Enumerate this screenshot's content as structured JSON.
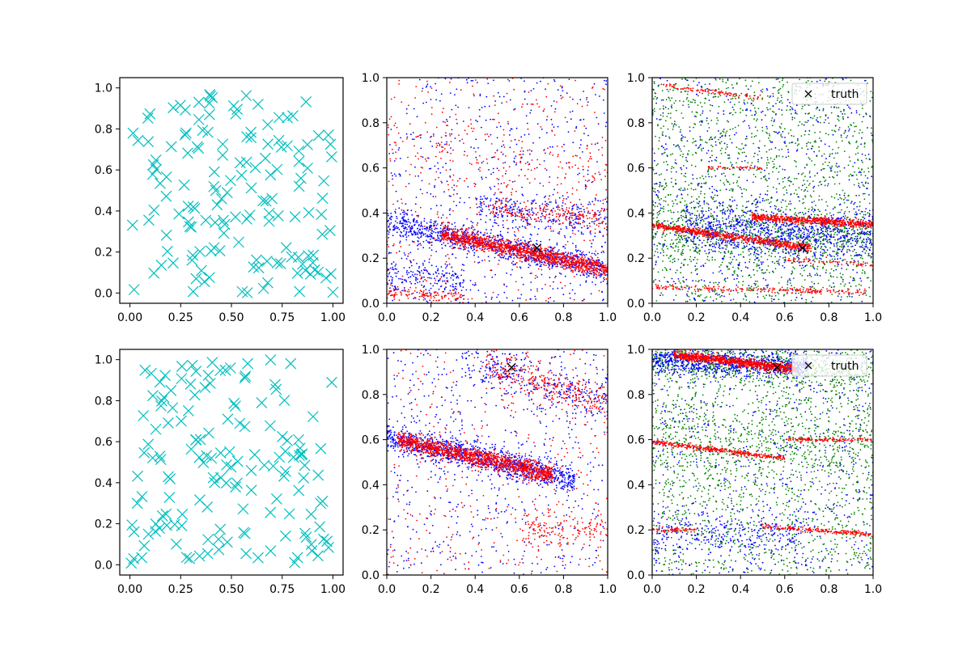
{
  "chart_data": [
    {
      "panel": "row1-col1",
      "type": "scatter",
      "xlim": [
        -0.05,
        1.05
      ],
      "ylim": [
        -0.05,
        1.05
      ],
      "xticks": [
        "0.00",
        "0.25",
        "0.50",
        "0.75",
        "1.00"
      ],
      "yticks": [
        "0.0",
        "0.2",
        "0.4",
        "0.6",
        "0.8",
        "1.0"
      ],
      "grid": false,
      "series": [
        {
          "marker": "x",
          "color": "#00bfbf",
          "count": 150,
          "distribution": "uniform"
        }
      ]
    },
    {
      "panel": "row1-col2",
      "type": "scatter",
      "xlim": [
        0,
        1
      ],
      "ylim": [
        0,
        1
      ],
      "xticks": [
        "0.0",
        "0.2",
        "0.4",
        "0.6",
        "0.8",
        "1.0"
      ],
      "yticks": [
        "0.0",
        "0.2",
        "0.4",
        "0.6",
        "0.8",
        "1.0"
      ],
      "grid": false,
      "series": [
        {
          "color": "#0000ff",
          "marker": "dot"
        },
        {
          "color": "#ff0000",
          "marker": "dot"
        }
      ],
      "truth_point": {
        "x": 0.68,
        "y": 0.245,
        "color": "#000000",
        "marker": "x"
      }
    },
    {
      "panel": "row1-col3",
      "type": "scatter",
      "xlim": [
        0,
        1
      ],
      "ylim": [
        0,
        1
      ],
      "xticks": [
        "0.0",
        "0.2",
        "0.4",
        "0.6",
        "0.8",
        "1.0"
      ],
      "yticks": [
        "0.0",
        "0.2",
        "0.4",
        "0.6",
        "0.8",
        "1.0"
      ],
      "grid": false,
      "series": [
        {
          "color": "#008000",
          "marker": "dot"
        },
        {
          "color": "#0000ff",
          "marker": "dot"
        },
        {
          "color": "#ff0000",
          "marker": "dot"
        }
      ],
      "truth_point": {
        "x": 0.68,
        "y": 0.245,
        "color": "#000000",
        "marker": "x"
      },
      "legend": {
        "placement": "top-right",
        "label": "truth"
      }
    },
    {
      "panel": "row2-col1",
      "type": "scatter",
      "xlim": [
        -0.05,
        1.05
      ],
      "ylim": [
        -0.05,
        1.05
      ],
      "xticks": [
        "0.00",
        "0.25",
        "0.50",
        "0.75",
        "1.00"
      ],
      "yticks": [
        "0.0",
        "0.2",
        "0.4",
        "0.6",
        "0.8",
        "1.0"
      ],
      "grid": false,
      "series": [
        {
          "marker": "x",
          "color": "#00bfbf",
          "count": 150,
          "distribution": "uniform"
        }
      ]
    },
    {
      "panel": "row2-col2",
      "type": "scatter",
      "xlim": [
        0,
        1
      ],
      "ylim": [
        0,
        1
      ],
      "xticks": [
        "0.0",
        "0.2",
        "0.4",
        "0.6",
        "0.8",
        "1.0"
      ],
      "yticks": [
        "0.0",
        "0.2",
        "0.4",
        "0.6",
        "0.8",
        "1.0"
      ],
      "grid": false,
      "series": [
        {
          "color": "#0000ff",
          "marker": "dot"
        },
        {
          "color": "#ff0000",
          "marker": "dot"
        }
      ],
      "truth_point": {
        "x": 0.565,
        "y": 0.92,
        "color": "#000000",
        "marker": "x"
      }
    },
    {
      "panel": "row2-col3",
      "type": "scatter",
      "xlim": [
        0,
        1
      ],
      "ylim": [
        0,
        1
      ],
      "xticks": [
        "0.0",
        "0.2",
        "0.4",
        "0.6",
        "0.8",
        "1.0"
      ],
      "yticks": [
        "0.0",
        "0.2",
        "0.4",
        "0.6",
        "0.8",
        "1.0"
      ],
      "grid": false,
      "series": [
        {
          "color": "#008000",
          "marker": "dot"
        },
        {
          "color": "#0000ff",
          "marker": "dot"
        },
        {
          "color": "#ff0000",
          "marker": "dot"
        }
      ],
      "truth_point": {
        "x": 0.565,
        "y": 0.92,
        "color": "#000000",
        "marker": "x"
      },
      "legend": {
        "placement": "top-right",
        "label": "truth"
      }
    }
  ]
}
